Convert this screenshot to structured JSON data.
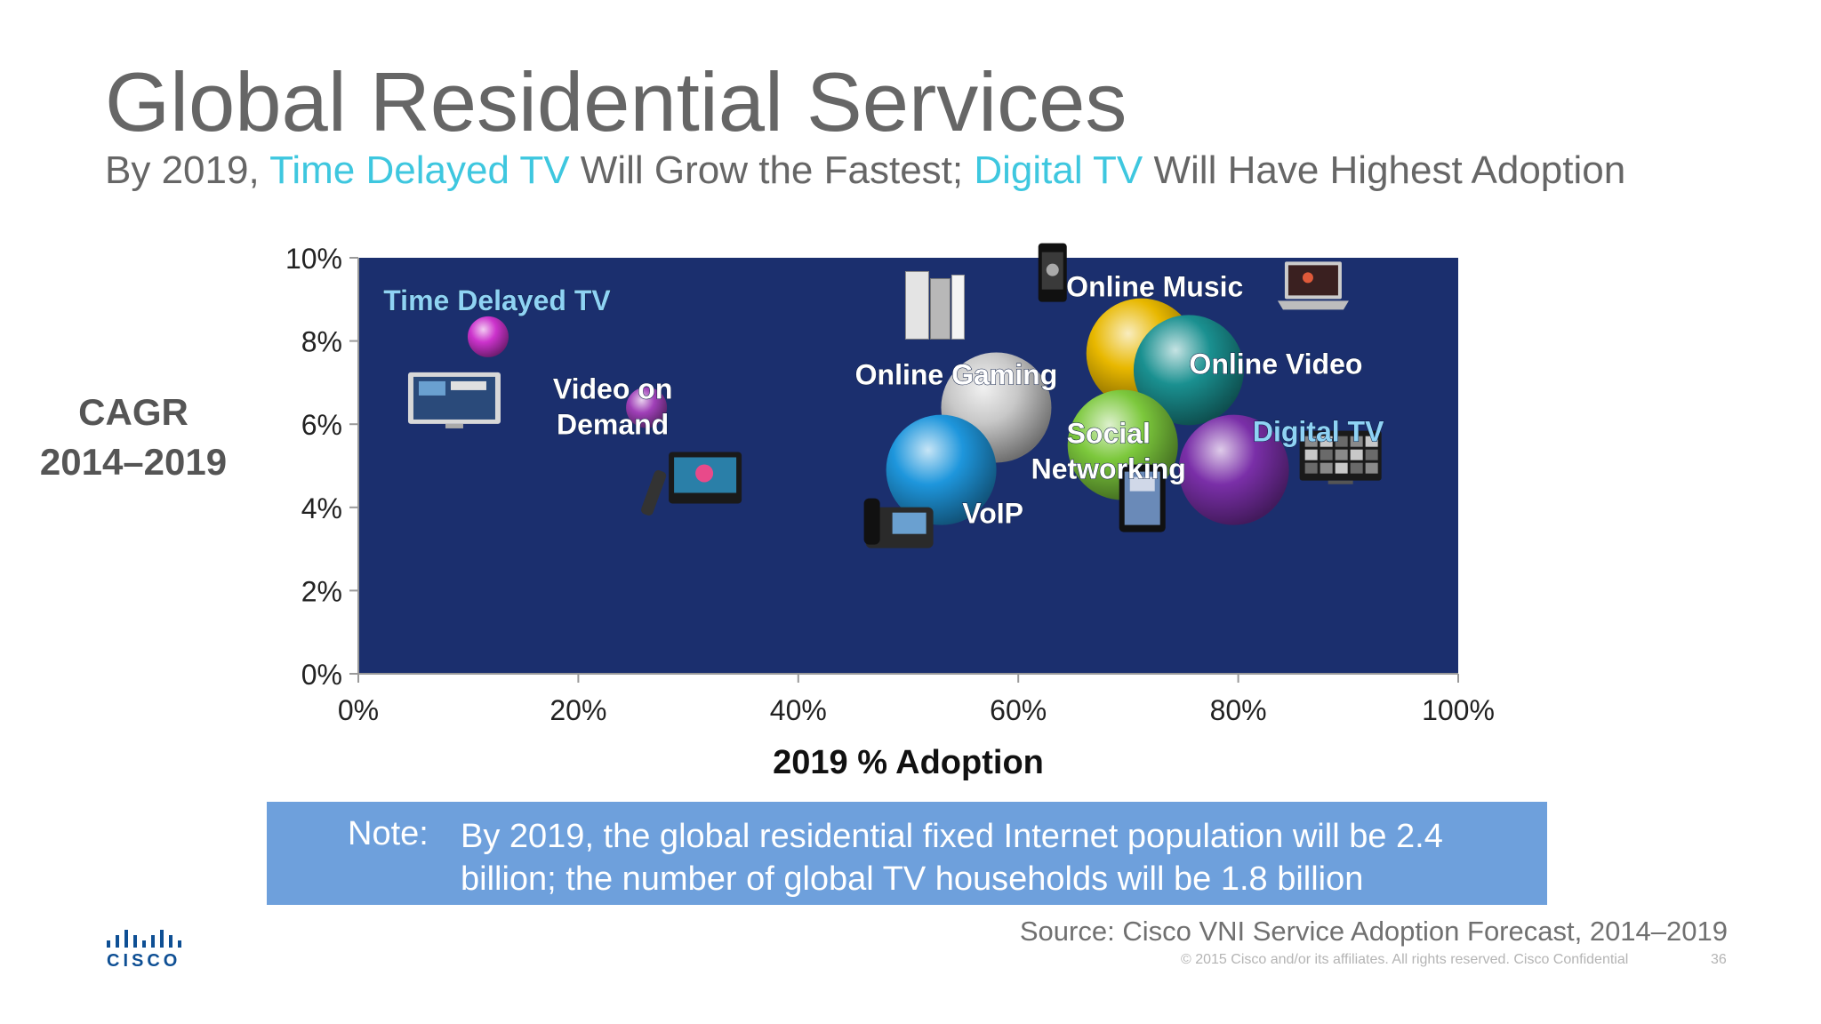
{
  "title": "Global Residential Services",
  "subtitle": {
    "p1": "By 2019, ",
    "h1": "Time Delayed TV",
    "p2": " Will Grow the Fastest; ",
    "h2": "Digital TV",
    "p3": " Will Have Highest Adoption"
  },
  "note": {
    "label": "Note:",
    "text": "By 2019, the global residential fixed Internet population will be 2.4 billion; the number of global TV households will be 1.8 billion"
  },
  "source": "Source: Cisco VNI Service Adoption Forecast, 2014–2019",
  "copyright": "© 2015  Cisco and/or its affiliates. All rights reserved.   Cisco Confidential",
  "page_number": "36",
  "logo_text": "CISCO",
  "colors": {
    "title_gray": "#666666",
    "highlight_cyan": "#3ec7df",
    "plot_bg": "#1b2f6e",
    "note_bg": "#6ea0dc"
  },
  "chart_data": {
    "type": "scatter",
    "title": "",
    "xlabel": "2019 % Adoption",
    "ylabel": "CAGR\n2014–2019",
    "xlim": [
      0,
      100
    ],
    "ylim": [
      0,
      10
    ],
    "x_ticks": [
      "0%",
      "20%",
      "40%",
      "60%",
      "80%",
      "100%"
    ],
    "y_ticks": [
      "0%",
      "2%",
      "4%",
      "6%",
      "8%",
      "10%"
    ],
    "grid": false,
    "points": [
      {
        "label": "Time Delayed TV",
        "x": 11.8,
        "y": 8.1,
        "size": "small",
        "color": "#cc33cc",
        "label_color": "#8fd3f4",
        "icon": "flat-tv-icon"
      },
      {
        "label": "Video on Demand",
        "x": 26.2,
        "y": 6.4,
        "size": "small",
        "color": "#a040b8",
        "label_color": "#ffffff",
        "icon": "tv-remote-icon"
      },
      {
        "label": "Online Gaming",
        "x": 58.0,
        "y": 6.4,
        "size": "large",
        "color": "#c8c8c8",
        "label_color": "#ffffff",
        "icon": "game-console-icon"
      },
      {
        "label": "VoIP",
        "x": 53.0,
        "y": 4.9,
        "size": "large",
        "color": "#1e96dc",
        "label_color": "#ffffff",
        "icon": "desk-phone-icon"
      },
      {
        "label": "Online Music",
        "x": 71.2,
        "y": 7.7,
        "size": "large",
        "color": "#e8b800",
        "label_color": "#ffffff",
        "icon": "mobile-phone-icon"
      },
      {
        "label": "Online Video",
        "x": 75.5,
        "y": 7.3,
        "size": "large",
        "color": "#1a9090",
        "label_color": "#ffffff",
        "icon": "laptop-icon"
      },
      {
        "label": "Social Networking",
        "x": 69.5,
        "y": 5.5,
        "size": "large",
        "color": "#7cc83c",
        "label_color": "#ffffff",
        "icon": "tablet-icon"
      },
      {
        "label": "Digital TV",
        "x": 79.6,
        "y": 4.9,
        "size": "large",
        "color": "#7a2fa8",
        "label_color": "#8fd3f4",
        "icon": "tv-grid-icon"
      }
    ]
  }
}
